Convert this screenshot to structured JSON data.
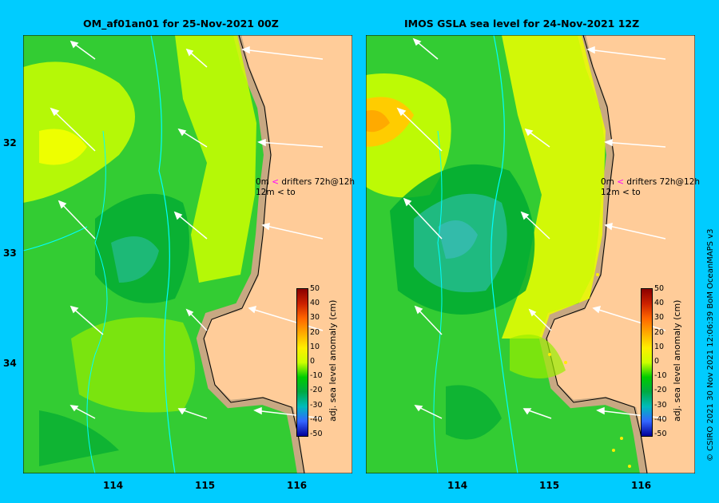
{
  "left_panel": {
    "title": "OM_af01an01 for 25-Nov-2021 00Z"
  },
  "right_panel": {
    "title": "IMOS GSLA sea level  for 24-Nov-2021 12Z"
  },
  "axes": {
    "lat_ticks": [
      "32",
      "33",
      "34"
    ],
    "lon_ticks": [
      "114",
      "115",
      "116"
    ]
  },
  "legend": {
    "row1_left": "0m",
    "row1_arrow": "<",
    "row1_text": "drifters 72h@12h",
    "row2_left": "12m",
    "row2_arrow": "<",
    "row2_text": "to"
  },
  "colorbar": {
    "title": "adj. sea level anomaly (cm)",
    "labels": [
      "50",
      "40",
      "30",
      "20",
      "10",
      "0",
      "-10",
      "-20",
      "-30",
      "-40",
      "-50"
    ],
    "stops": [
      "#8b0000",
      "#cc2200",
      "#ff6600",
      "#ffaa00",
      "#ffee00",
      "#ccff00",
      "#00cc00",
      "#00aa44",
      "#00bbbb",
      "#3366ff",
      "#000099"
    ]
  },
  "credit": "© CSIRO 2021   30 Nov 2021 12:06:39 BoM OceanMAPS v3",
  "colors": {
    "background": "#00ccff",
    "land": "#ffcc99",
    "shelf": "#c8a882",
    "green": "#33cc33",
    "lime": "#ccff00",
    "teal": "#22bb88",
    "yellow": "#eeff00"
  }
}
